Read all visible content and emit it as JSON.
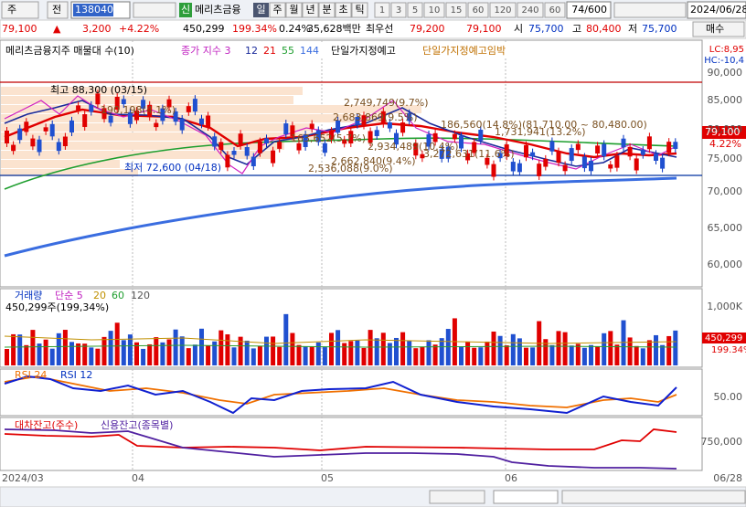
{
  "toolbar": {
    "market": "주",
    "prev": "전",
    "code": "138040",
    "new": "신",
    "name": "메리츠금융",
    "periods": [
      "일",
      "주",
      "월",
      "년",
      "분",
      "초",
      "틱"
    ],
    "intervals": [
      "1",
      "3",
      "5",
      "10",
      "15",
      "60",
      "120",
      "240",
      "60"
    ],
    "count": "74/600",
    "date": "2024/06/28"
  },
  "quote": {
    "price": "79,100",
    "arrow": "▲",
    "change": "3,200",
    "rate": "+4.22%",
    "volume": "450,299",
    "volume_rate": "199.34%",
    "turnover": "0.24%",
    "amount": "35,628백만",
    "best_label": "최우선",
    "ask": "79,200",
    "bid": "79,100",
    "open_label": "시",
    "open": "75,700",
    "high_label": "고",
    "high": "80,400",
    "low_label": "저",
    "low": "75,700",
    "order": "매수"
  },
  "price_panel": {
    "legend": [
      "메리츠금융지주 매물대 수(10)",
      "종가 지수 3",
      "12",
      "21",
      "55",
      "144",
      "단일가지정예고",
      "단일가지정예고임박"
    ],
    "corner": [
      "LC:8,95",
      "HC:-10,4"
    ],
    "axis": [
      "90,000",
      "85,000",
      "80,000",
      "75,000",
      "70,000",
      "65,000",
      "60,000"
    ],
    "high_note": "최고 88,300 (03/15)",
    "low_note": "최저 72,600 (04/18)",
    "profile": [
      "2,749,749(9.7%)",
      "2,683,869(9.5%)",
      "186,560(14.8%)(81,710.00 ~ 80,480.00)",
      "1,731,941(13.2%)",
      "2,934,489(10.4%)",
      "3,272,631(11.6%)",
      "2,662,840(9.4%)",
      "2,536,088(9.0%)",
      "190,198(4.1%)",
      "163,652(5.7%)"
    ],
    "last": "79,100",
    "last_rate": "4.22%"
  },
  "volume_panel": {
    "legend": [
      "거래량",
      "단순 5",
      "20",
      "60",
      "120"
    ],
    "note": "450,299주(199,34%)",
    "axis": "1,000K",
    "last": "450,299",
    "last_rate": "199.34%"
  },
  "rsi_panel": {
    "legend": [
      "RSI 24",
      "RSI 12"
    ],
    "axis": "50.00"
  },
  "loan_panel": {
    "legend": [
      "대차잔고(주수)",
      "신용잔고(종목별)"
    ],
    "axis": "750,000"
  },
  "dates": [
    "2024/03",
    "04",
    "05",
    "06",
    "06/28"
  ]
}
